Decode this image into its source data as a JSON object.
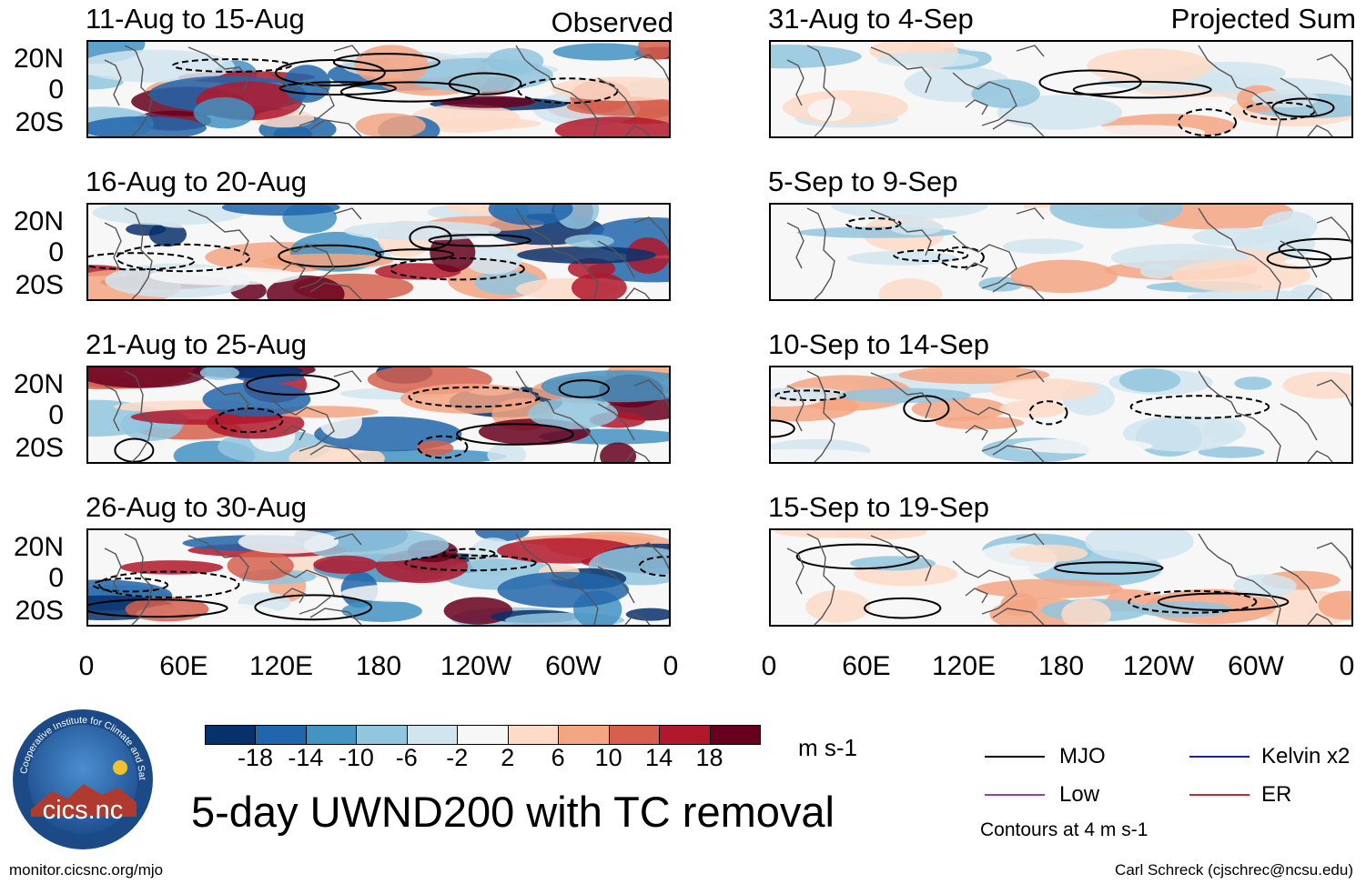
{
  "columns": {
    "left_header": "Observed",
    "right_header": "Projected Sum"
  },
  "panels": {
    "left": [
      {
        "title": "11-Aug to 15-Aug"
      },
      {
        "title": "16-Aug to 20-Aug"
      },
      {
        "title": "21-Aug to 25-Aug"
      },
      {
        "title": "26-Aug to 30-Aug"
      }
    ],
    "right": [
      {
        "title": "31-Aug to 4-Sep"
      },
      {
        "title": "5-Sep to 9-Sep"
      },
      {
        "title": "10-Sep to 14-Sep"
      },
      {
        "title": "15-Sep to 19-Sep"
      }
    ]
  },
  "axes": {
    "lat_labels": [
      "20N",
      "0",
      "20S"
    ],
    "lon_labels": [
      "0",
      "60E",
      "120E",
      "180",
      "120W",
      "60W",
      "0"
    ]
  },
  "colorbar": {
    "unit": "m s-1",
    "tick_labels": [
      "-18",
      "-14",
      "-10",
      "-6",
      "-2",
      "2",
      "6",
      "10",
      "14",
      "18"
    ],
    "colors": [
      "#08306b",
      "#2166ac",
      "#4393c3",
      "#92c5de",
      "#d1e5f0",
      "#f7f7f7",
      "#fddbc7",
      "#f4a582",
      "#d6604d",
      "#b2182b",
      "#67001f"
    ]
  },
  "title": "5-day UWND200 with TC removal",
  "legend": {
    "items": [
      {
        "label": "MJO",
        "color": "#000000"
      },
      {
        "label": "Kelvin x2",
        "color": "#1a1adc"
      },
      {
        "label": "Low",
        "color": "#a033e0"
      },
      {
        "label": "ER",
        "color": "#e81c1c"
      }
    ],
    "note": "Contours at 4 m s-1"
  },
  "logo": {
    "text": "cics.nc",
    "ring_text": "Cooperative Institute for Climate and Satellites"
  },
  "footer": {
    "left": "monitor.cicsnc.org/mjo",
    "right": "Carl Schreck (cjschrec@ncsu.edu)"
  }
}
